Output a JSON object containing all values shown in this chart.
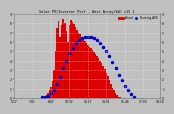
{
  "title": "Solar PV/Inverter Perf - West Array(kW) x15 1",
  "legend_actual": "Actual",
  "legend_avg": "Running AVG",
  "bg_color": "#c0c0c0",
  "plot_bg": "#c0c0c0",
  "bar_color": "#dd0000",
  "bar_edge_color": "#ff3333",
  "avg_color": "#0000cc",
  "grid_color": "#ffffff",
  "title_color": "#000000",
  "label_color": "#000000",
  "xlim": [
    0,
    95
  ],
  "ylim": [
    0,
    9
  ],
  "xlabel_times": [
    "5:17",
    "7:01",
    "8:47",
    "10:32",
    "12:17",
    "14:01",
    "15:46",
    "17:30",
    "19:14"
  ],
  "xtick_pos": [
    0,
    12,
    24,
    36,
    48,
    60,
    72,
    84,
    95
  ],
  "bar_data": [
    0,
    0,
    0,
    0,
    0,
    0,
    0,
    0,
    0,
    0,
    0,
    0,
    0,
    0,
    0,
    0,
    0,
    0,
    0,
    0,
    0.1,
    0.3,
    0.5,
    0.8,
    1.2,
    1.8,
    3.0,
    5.0,
    7.5,
    8.2,
    6.5,
    7.8,
    8.5,
    8.0,
    7.2,
    6.0,
    7.8,
    8.3,
    8.1,
    7.9,
    7.6,
    7.3,
    7.0,
    6.8,
    6.5,
    6.3,
    6.1,
    5.9,
    5.7,
    5.5,
    5.3,
    5.1,
    4.9,
    4.7,
    4.5,
    4.3,
    4.0,
    3.7,
    3.4,
    3.1,
    2.7,
    2.3,
    1.9,
    1.5,
    1.1,
    0.8,
    0.5,
    0.3,
    0.15,
    0.07,
    0.02,
    0,
    0,
    0,
    0,
    0,
    0,
    0,
    0,
    0,
    0,
    0,
    0,
    0,
    0,
    0,
    0,
    0,
    0,
    0,
    0,
    0,
    0,
    0,
    0
  ],
  "avg_data_x": [
    18,
    20,
    22,
    24,
    26,
    28,
    30,
    32,
    34,
    36,
    38,
    40,
    42,
    44,
    46,
    48,
    50,
    52,
    54,
    56,
    58,
    60,
    62,
    64,
    66,
    68,
    70,
    72,
    74,
    76,
    78
  ],
  "avg_data_y": [
    0.05,
    0.1,
    0.2,
    0.5,
    0.9,
    1.5,
    2.2,
    3.2,
    4.0,
    4.8,
    5.4,
    5.9,
    6.2,
    6.4,
    6.5,
    6.55,
    6.5,
    6.4,
    6.2,
    5.9,
    5.5,
    5.0,
    4.5,
    3.9,
    3.2,
    2.5,
    1.9,
    1.3,
    0.8,
    0.4,
    0.1
  ],
  "ytick_right": [
    "9",
    "8",
    "7",
    "6",
    "5",
    "4",
    "3",
    "2",
    "1",
    "0"
  ],
  "ytick_vals": [
    0,
    1,
    2,
    3,
    4,
    5,
    6,
    7,
    8,
    9
  ]
}
